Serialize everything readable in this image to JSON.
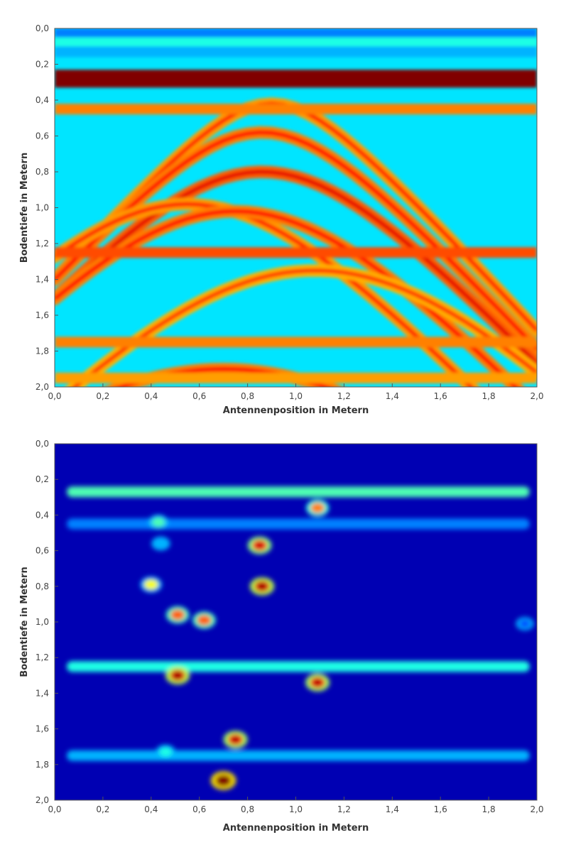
{
  "chart_data": [
    {
      "type": "heatmap",
      "title": "",
      "xlabel": "Antennenposition in Metern",
      "ylabel": "Bodentiefe in Metern",
      "xlim": [
        0,
        2
      ],
      "ylim": [
        2,
        0
      ],
      "y_axis_inverted": true,
      "colormap": "jet",
      "x_ticks": [
        "0,0",
        "0,2",
        "0,4",
        "0,6",
        "0,8",
        "1,0",
        "1,2",
        "1,4",
        "1,6",
        "1,8",
        "2,0"
      ],
      "y_ticks": [
        "0,0",
        "0,2",
        "0,4",
        "0,6",
        "0,8",
        "1,0",
        "1,2",
        "1,4",
        "1,6",
        "1,8",
        "2,0"
      ],
      "grid": false,
      "features": {
        "horizontal_bands": [
          {
            "depth": 0.03,
            "level": 0.25
          },
          {
            "depth": 0.08,
            "level": 0.4
          },
          {
            "depth": 0.13,
            "level": 0.3
          },
          {
            "depth": 0.28,
            "level": 1.0
          },
          {
            "depth": 0.45,
            "level": 0.75
          },
          {
            "depth": 1.25,
            "level": 0.8
          },
          {
            "depth": 1.75,
            "level": 0.75
          },
          {
            "depth": 1.95,
            "level": 0.72
          }
        ],
        "hyperbolas": [
          {
            "apex_x": 0.9,
            "apex_depth": 0.42,
            "level": 0.72
          },
          {
            "apex_x": 0.86,
            "apex_depth": 0.58,
            "level": 0.75
          },
          {
            "apex_x": 0.86,
            "apex_depth": 0.8,
            "level": 0.78
          },
          {
            "apex_x": 0.55,
            "apex_depth": 0.98,
            "level": 0.72
          },
          {
            "apex_x": 0.75,
            "apex_depth": 1.02,
            "level": 0.75
          },
          {
            "apex_x": 1.08,
            "apex_depth": 1.35,
            "level": 0.7
          },
          {
            "apex_x": 0.7,
            "apex_depth": 1.9,
            "level": 0.75
          }
        ]
      }
    },
    {
      "type": "heatmap",
      "title": "",
      "xlabel": "Antennenposition in Metern",
      "ylabel": "Bodentiefe in Metern",
      "xlim": [
        0,
        2
      ],
      "ylim": [
        2,
        0
      ],
      "y_axis_inverted": true,
      "colormap": "jet",
      "x_ticks": [
        "0,0",
        "0,2",
        "0,4",
        "0,6",
        "0,8",
        "1,0",
        "1,2",
        "1,4",
        "1,6",
        "1,8",
        "2,0"
      ],
      "y_ticks": [
        "0,0",
        "0,2",
        "0,4",
        "0,6",
        "0,8",
        "1,0",
        "1,2",
        "1,4",
        "1,6",
        "1,8",
        "2,0"
      ],
      "grid": false,
      "features": {
        "horizontal_bands": [
          {
            "depth": 0.27,
            "level": 0.45
          },
          {
            "depth": 0.45,
            "level": 0.25
          },
          {
            "depth": 1.25,
            "level": 0.4
          },
          {
            "depth": 1.75,
            "level": 0.3
          }
        ],
        "blobs": [
          {
            "x": 1.09,
            "depth": 0.36,
            "level": 0.75
          },
          {
            "x": 0.43,
            "depth": 0.44,
            "level": 0.45
          },
          {
            "x": 0.44,
            "depth": 0.56,
            "level": 0.3
          },
          {
            "x": 0.85,
            "depth": 0.57,
            "level": 0.85
          },
          {
            "x": 0.4,
            "depth": 0.79,
            "level": 0.62
          },
          {
            "x": 0.86,
            "depth": 0.8,
            "level": 0.9
          },
          {
            "x": 0.51,
            "depth": 0.96,
            "level": 0.78
          },
          {
            "x": 0.62,
            "depth": 0.99,
            "level": 0.78
          },
          {
            "x": 1.95,
            "depth": 1.01,
            "level": 0.2
          },
          {
            "x": 0.51,
            "depth": 1.3,
            "level": 0.9
          },
          {
            "x": 1.09,
            "depth": 1.34,
            "level": 0.88
          },
          {
            "x": 0.75,
            "depth": 1.66,
            "level": 0.88
          },
          {
            "x": 0.46,
            "depth": 1.73,
            "level": 0.4
          },
          {
            "x": 0.7,
            "depth": 1.89,
            "level": 1.0
          }
        ]
      }
    }
  ]
}
